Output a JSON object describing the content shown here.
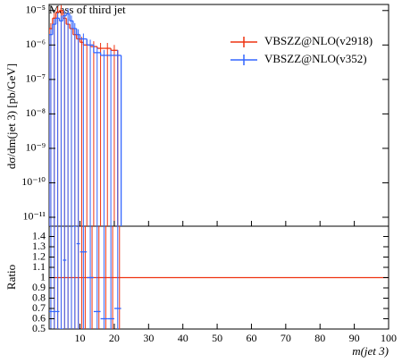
{
  "chart_data": {
    "type": "histogram",
    "title": "Mass of third jet",
    "y_label": "dσ/dm(jet 3) [pb/GeV]",
    "x_label": "m(jet 3)",
    "xlim": [
      1,
      100
    ],
    "xticks": [
      10,
      20,
      30,
      40,
      50,
      60,
      70,
      80,
      90,
      100
    ],
    "ylim": [
      5.5e-12,
      1.5e-05
    ],
    "log_y": true,
    "yticks": [
      {
        "value": 1e-11,
        "label": "10⁻¹¹"
      },
      {
        "value": 1e-10,
        "label": "10⁻¹⁰"
      },
      {
        "value": 1e-09,
        "label": "10⁻⁹"
      },
      {
        "value": 1e-08,
        "label": "10⁻⁸"
      },
      {
        "value": 1e-07,
        "label": "10⁻⁷"
      },
      {
        "value": 1e-06,
        "label": "10⁻⁶"
      },
      {
        "value": 1e-05,
        "label": "10⁻⁵"
      }
    ],
    "legend": "upper right",
    "series": [
      {
        "name": "VBSZZ@NLO(v2918)",
        "color": "#ee3311",
        "bins": [
          1,
          2,
          3,
          4,
          5,
          6,
          7,
          8,
          9,
          10,
          11,
          13,
          15,
          17,
          19,
          21
        ],
        "values": [
          3e-06,
          6e-06,
          9e-06,
          1e-05,
          6e-06,
          4e-06,
          3e-06,
          2e-06,
          1.5e-06,
          1.2e-06,
          1e-06,
          9e-07,
          8e-07,
          8e-07,
          7e-07
        ]
      },
      {
        "name": "VBSZZ@NLO(v352)",
        "color": "#3366ff",
        "bins": [
          1,
          2,
          3,
          4,
          5,
          6,
          7,
          8,
          9,
          10,
          12,
          14,
          16,
          18,
          20,
          22
        ],
        "values": [
          2e-06,
          4e-06,
          6e-06,
          5e-06,
          7e-06,
          8e-06,
          5e-06,
          3e-06,
          2e-06,
          1.5e-06,
          1e-06,
          6e-07,
          5e-07,
          5e-07,
          5e-07
        ]
      }
    ],
    "ratio": {
      "y_label": "Ratio",
      "ylim": [
        0.5,
        1.5
      ],
      "yticks": [
        0.5,
        0.6,
        0.7,
        0.8,
        0.9,
        1,
        1.1,
        1.2,
        1.3,
        1.4
      ],
      "reference": 1,
      "values": [
        0.67,
        0.67,
        0.67,
        0.5,
        1.17,
        2,
        1.67,
        1.5,
        1.33,
        1.25,
        1,
        0.67,
        0.6,
        0.6,
        0.7
      ]
    }
  }
}
